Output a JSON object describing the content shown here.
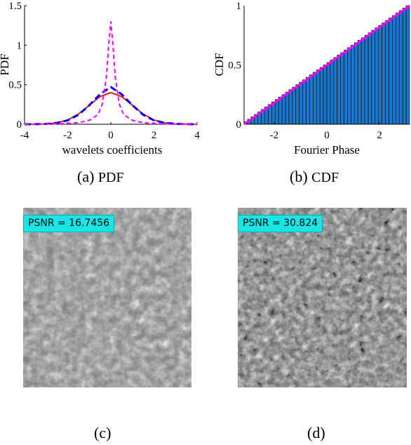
{
  "chart_data": [
    {
      "type": "line",
      "xlabel": "wavelets coefficients",
      "ylabel": "PDF",
      "xlim": [
        -4,
        4
      ],
      "ylim": [
        0,
        1.5
      ],
      "xticks": [
        "-4",
        "-2",
        "0",
        "2",
        "4"
      ],
      "yticks": [
        "0",
        "0.5",
        "1",
        "1.5"
      ],
      "series": [
        {
          "style": "solid",
          "color": "#ff0000",
          "x": [
            -4,
            -3.5,
            -3,
            -2.5,
            -2,
            -1.5,
            -1,
            -0.5,
            0,
            0.5,
            1,
            1.5,
            2,
            2.5,
            3,
            3.5,
            4
          ],
          "values": [
            0,
            0.001,
            0.004,
            0.018,
            0.054,
            0.13,
            0.24,
            0.35,
            0.4,
            0.35,
            0.24,
            0.13,
            0.054,
            0.018,
            0.004,
            0.001,
            0
          ]
        },
        {
          "style": "dashed",
          "color": "#0000ff",
          "x": [
            -4,
            -3.5,
            -3,
            -2.5,
            -2,
            -1.5,
            -1,
            -0.5,
            0,
            0.5,
            1,
            1.5,
            2,
            2.5,
            3,
            3.5,
            4
          ],
          "values": [
            0,
            0.001,
            0.004,
            0.017,
            0.05,
            0.12,
            0.24,
            0.38,
            0.47,
            0.38,
            0.24,
            0.12,
            0.05,
            0.017,
            0.004,
            0.001,
            0
          ]
        },
        {
          "style": "dashed",
          "color": "#ff00ff",
          "x": [
            -4,
            -3,
            -2,
            -1.5,
            -1,
            -0.6,
            -0.4,
            -0.2,
            -0.1,
            0,
            0.1,
            0.2,
            0.4,
            0.6,
            1,
            1.5,
            2,
            3,
            4
          ],
          "values": [
            0,
            0.002,
            0.01,
            0.02,
            0.05,
            0.12,
            0.25,
            0.6,
            1.0,
            1.3,
            1.0,
            0.6,
            0.25,
            0.12,
            0.05,
            0.02,
            0.01,
            0.002,
            0
          ]
        }
      ]
    },
    {
      "type": "bar",
      "xlabel": "Fourier Phase",
      "ylabel": "CDF",
      "xlim": [
        -3.14159,
        3.14159
      ],
      "ylim": [
        0,
        1
      ],
      "xticks": [
        "-2",
        "0",
        "2"
      ],
      "yticks": [
        "0",
        "0.5",
        "1"
      ],
      "bar_count": 48,
      "bar_color": "#1a77c9",
      "line": {
        "color": "#ff00ff",
        "x": [
          -3.14159,
          3.14159
        ],
        "values": [
          0,
          1
        ]
      }
    }
  ],
  "captions": {
    "a": {
      "tag": "(a)",
      "text": "PDF"
    },
    "b": {
      "tag": "(b)",
      "text": "CDF"
    },
    "c": {
      "tag": "(c)"
    },
    "d": {
      "tag": "(d)"
    }
  },
  "images": {
    "c": {
      "psnr": "PSNR = 16.7456"
    },
    "d": {
      "psnr": "PSNR = 30.824"
    }
  }
}
